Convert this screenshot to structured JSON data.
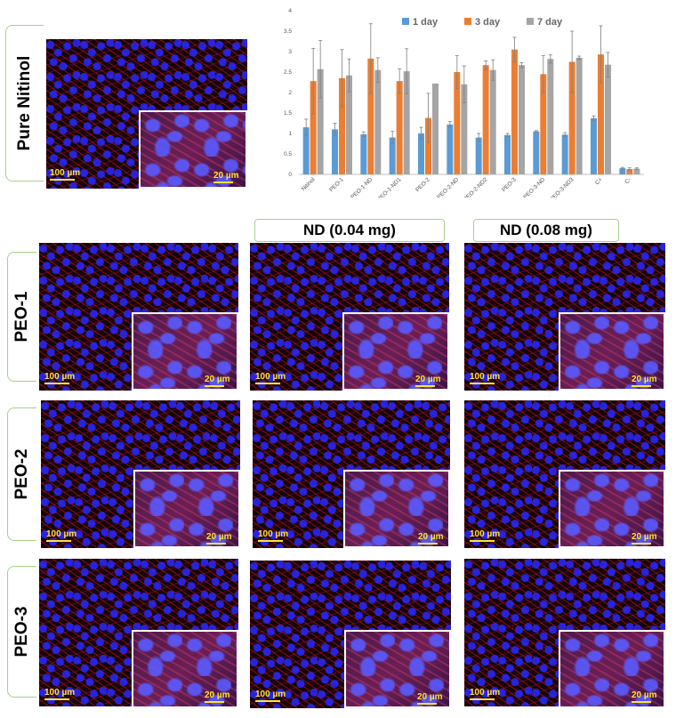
{
  "labels": {
    "pure": "Pure Nitinol",
    "peo1": "PEO-1",
    "peo2": "PEO-2",
    "peo3": "PEO-3",
    "nd1": "ND (0.04 mg)",
    "nd2": "ND (0.08 mg)"
  },
  "scale_bars": {
    "large": "100 µm",
    "small": "20 µm"
  },
  "colors": {
    "day1": "#5b9bd5",
    "day3": "#ed7d31",
    "day7": "#a5a5a5",
    "panel_border": "#a8d08d",
    "scale_bar": "#ffe23a"
  },
  "chart_data": {
    "type": "bar",
    "categories": [
      "Nitinol",
      "PEO-1",
      "PEO-1-ND",
      "PEO-1-ND1",
      "PEO-2",
      "PEO-2-ND",
      "PEO-2-ND2",
      "PEO-3",
      "PEO-3-ND",
      "PEO-3-ND3",
      "C+",
      "C-"
    ],
    "series": [
      {
        "name": "1 day",
        "color": "#5b9bd5",
        "values": [
          1.15,
          1.1,
          0.98,
          0.9,
          1.0,
          1.22,
          0.9,
          0.96,
          1.05,
          0.97,
          1.37,
          0.15
        ],
        "errors": [
          0.2,
          0.15,
          0.06,
          0.15,
          0.15,
          0.07,
          0.1,
          0.04,
          0.02,
          0.05,
          0.06,
          0.02
        ]
      },
      {
        "name": "3 day",
        "color": "#ed7d31",
        "values": [
          2.28,
          2.35,
          2.83,
          2.28,
          1.38,
          2.5,
          2.67,
          3.05,
          2.45,
          2.75,
          2.93,
          0.13
        ],
        "errors": [
          0.8,
          0.7,
          0.85,
          0.3,
          0.6,
          0.4,
          0.1,
          0.3,
          0.45,
          0.75,
          0.7,
          0.03
        ]
      },
      {
        "name": "7 day",
        "color": "#a5a5a5",
        "values": [
          2.57,
          2.42,
          2.55,
          2.52,
          2.22,
          2.2,
          2.55,
          2.67,
          2.82,
          2.85,
          2.68,
          0.14
        ],
        "errors": [
          0.7,
          0.4,
          0.3,
          0.55,
          0.0,
          0.45,
          0.25,
          0.06,
          0.1,
          0.04,
          0.3,
          0.02
        ]
      }
    ],
    "yticks": [
      0,
      0.5,
      1,
      1.5,
      2,
      2.5,
      3,
      3.5,
      4
    ],
    "ylim": [
      0,
      4
    ],
    "grid": false,
    "legend": "top"
  }
}
